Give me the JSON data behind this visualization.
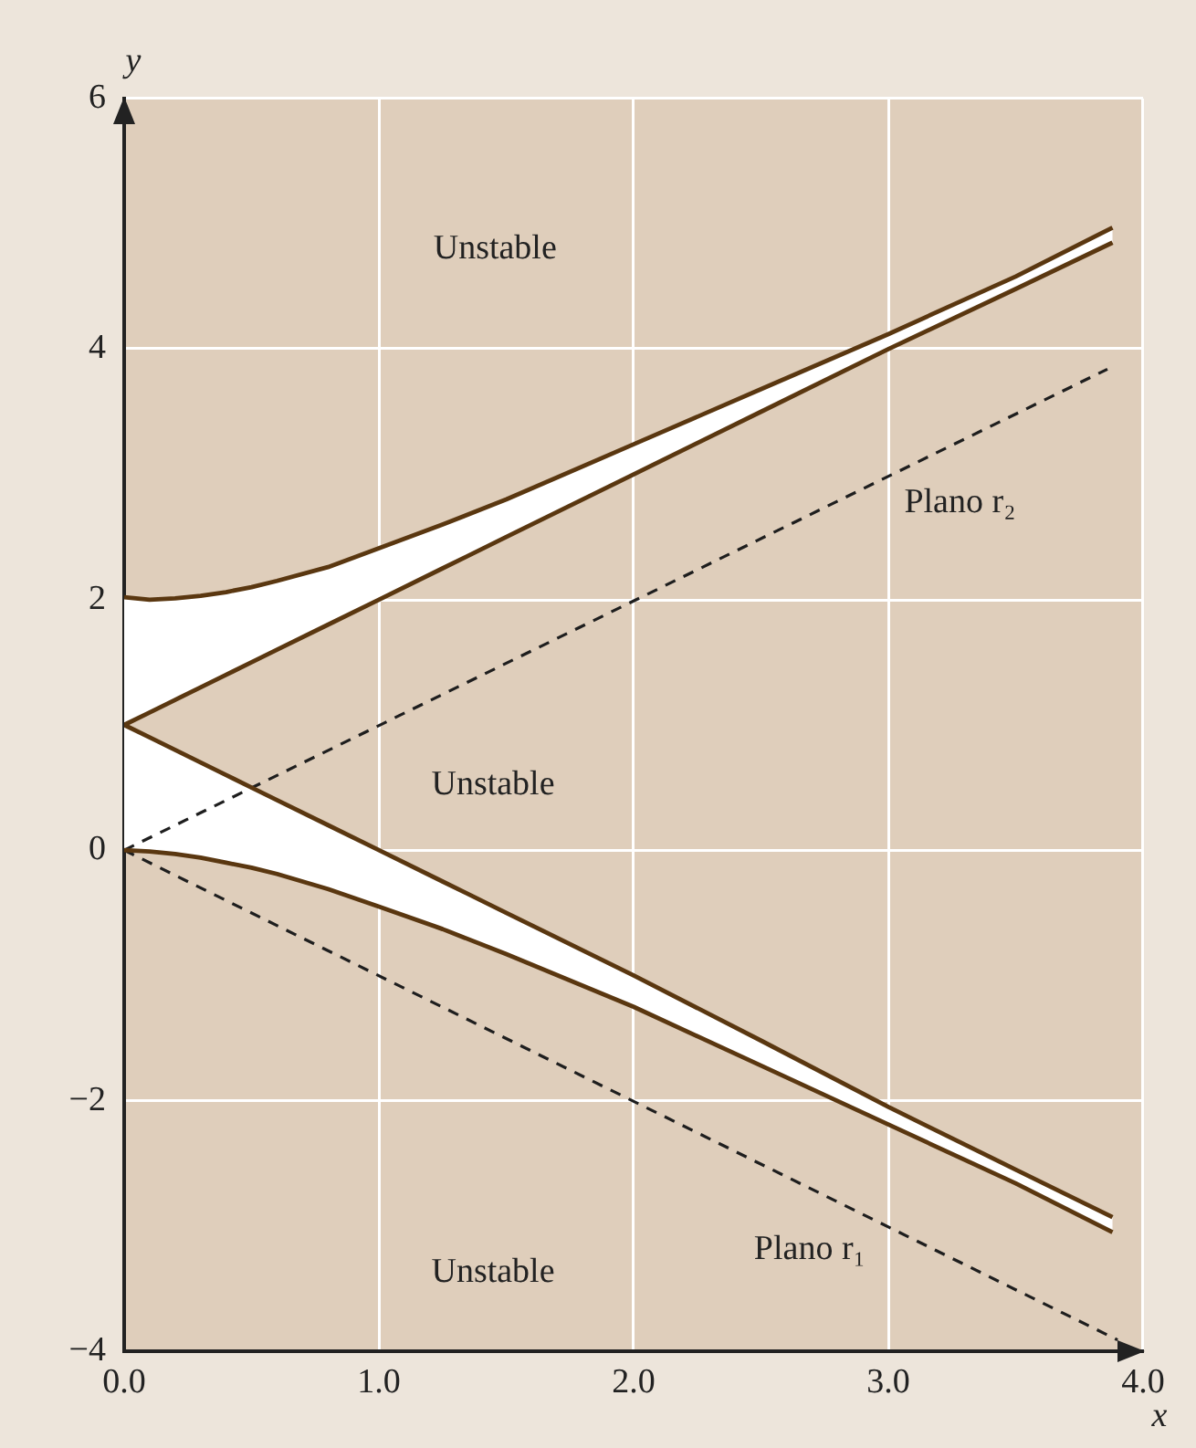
{
  "chart_data": {
    "type": "line",
    "xlabel": "x",
    "ylabel": "y",
    "xlim": [
      0,
      4
    ],
    "ylim": [
      -4,
      6
    ],
    "xticks": [
      {
        "value": 0,
        "label": "0.0"
      },
      {
        "value": 1,
        "label": "1.0"
      },
      {
        "value": 2,
        "label": "2.0"
      },
      {
        "value": 3,
        "label": "3.0"
      },
      {
        "value": 4,
        "label": "4.0"
      }
    ],
    "yticks": [
      {
        "value": -4,
        "label": "−4"
      },
      {
        "value": -2,
        "label": "−2"
      },
      0,
      2,
      4,
      6
    ],
    "grid": true,
    "marker": "none",
    "x": [
      0,
      0.1,
      0.2,
      0.3,
      0.4,
      0.5,
      0.6,
      0.8,
      1,
      1.25,
      1.5,
      2,
      2.5,
      3,
      3.5,
      3.88
    ],
    "series": [
      {
        "color": "#5a3710",
        "values": [
          2.02,
          2.0,
          2.01,
          2.03,
          2.06,
          2.1,
          2.15,
          2.26,
          2.41,
          2.6,
          2.8,
          3.24,
          3.68,
          4.12,
          4.58,
          4.97
        ],
        "lower": [
          1,
          1.1,
          1.2,
          1.3,
          1.4,
          1.5,
          1.6,
          1.8,
          2,
          2.25,
          2.5,
          3,
          3.5,
          4,
          4.48,
          4.85
        ],
        "upper": [
          2.02,
          2.0,
          2.01,
          2.03,
          2.06,
          2.1,
          2.15,
          2.26,
          2.41,
          2.6,
          2.8,
          3.24,
          3.68,
          4.12,
          4.58,
          4.97
        ]
      },
      {
        "color": "#5a3710",
        "values": [
          1,
          1.1,
          1.2,
          1.3,
          1.4,
          1.5,
          1.6,
          1.8,
          2,
          2.25,
          2.5,
          3,
          3.5,
          4,
          4.48,
          4.85
        ]
      },
      {
        "color": "#5a3710",
        "values": [
          1,
          0.9,
          0.8,
          0.7,
          0.6,
          0.5,
          0.4,
          0.2,
          0,
          -0.25,
          -0.5,
          -1,
          -1.52,
          -2.05,
          -2.55,
          -2.93
        ]
      },
      {
        "color": "#5a3710",
        "values": [
          0,
          -0.01,
          -0.03,
          -0.06,
          -0.1,
          -0.14,
          -0.19,
          -0.31,
          -0.45,
          -0.63,
          -0.83,
          -1.25,
          -1.72,
          -2.19,
          -2.66,
          -3.05
        ],
        "lower": [
          0,
          -0.01,
          -0.03,
          -0.06,
          -0.1,
          -0.14,
          -0.19,
          -0.31,
          -0.45,
          -0.63,
          -0.83,
          -1.25,
          -1.72,
          -2.19,
          -2.66,
          -3.05
        ],
        "upper": [
          1,
          0.9,
          0.8,
          0.7,
          0.6,
          0.5,
          0.4,
          0.2,
          0,
          -0.25,
          -0.5,
          -1,
          -1.52,
          -2.05,
          -2.55,
          -2.93
        ]
      },
      {
        "name": "Plano r₂",
        "color": "#1e1e1e",
        "line_style": "dashed",
        "x": [
          0,
          3.86
        ],
        "values": [
          0,
          3.84
        ]
      },
      {
        "name": "Plano r₁",
        "color": "#1e1e1e",
        "line_style": "dashed",
        "x": [
          0,
          3.9
        ],
        "values": [
          0,
          -3.91
        ]
      }
    ],
    "annotations": [
      "Unstable",
      "Unstable",
      "Unstable"
    ]
  }
}
